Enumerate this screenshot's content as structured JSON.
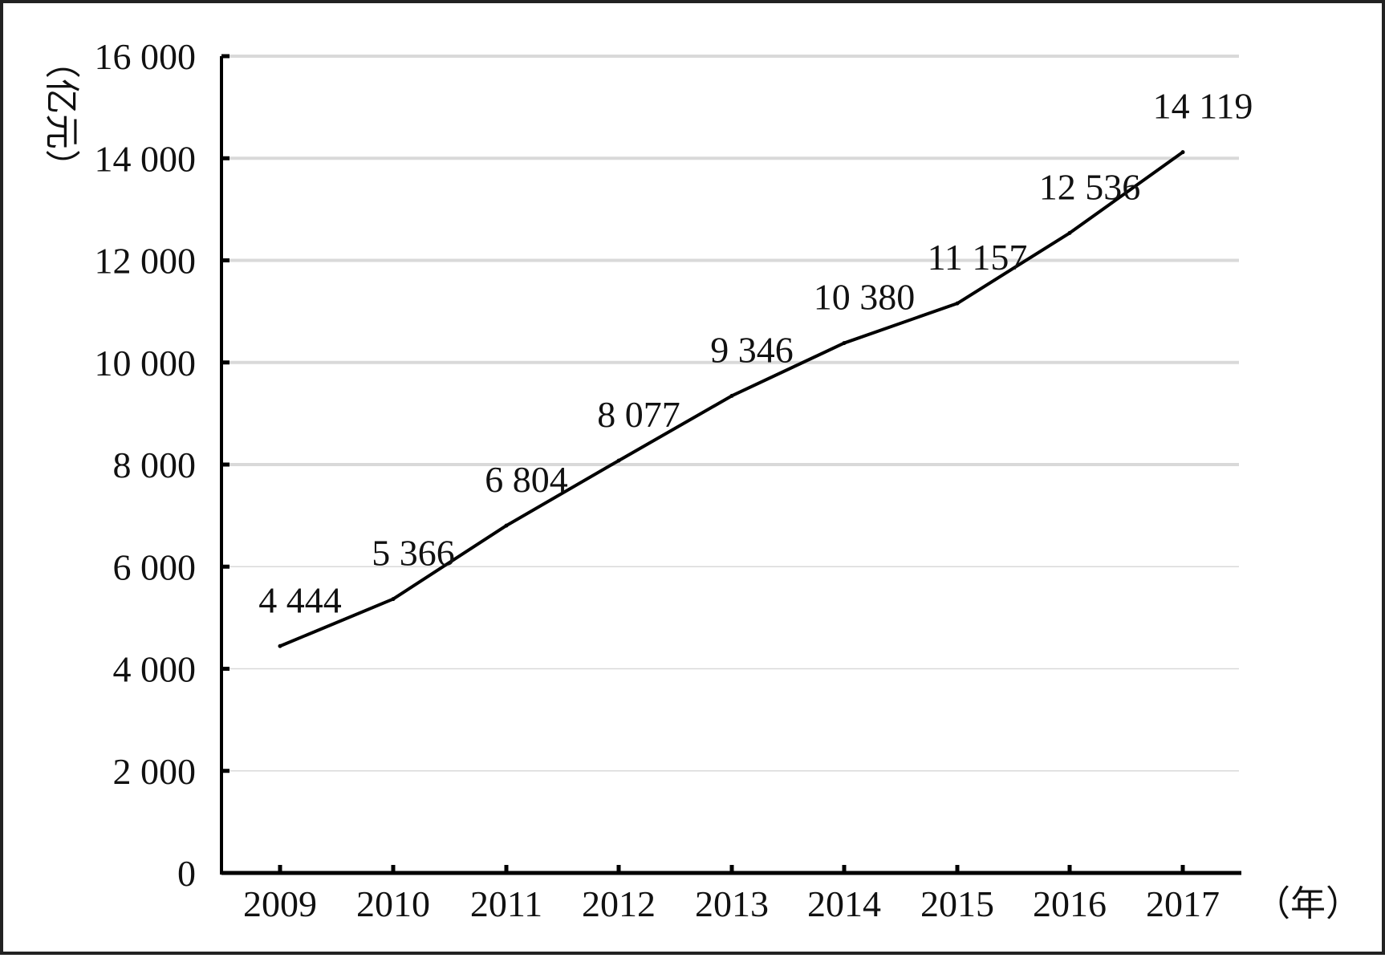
{
  "chart_data": {
    "type": "line",
    "x": [
      "2009",
      "2010",
      "2011",
      "2012",
      "2013",
      "2014",
      "2015",
      "2016",
      "2017"
    ],
    "series": [
      {
        "values": [
          4444,
          5366,
          6804,
          8077,
          9346,
          10380,
          11157,
          12536,
          14119
        ]
      }
    ],
    "data_labels": [
      "4 444",
      "5 366",
      "6 804",
      "8 077",
      "9 346",
      "10 380",
      "11 157",
      "12 536",
      "14 119"
    ],
    "y_ticks": [
      {
        "value": 0,
        "label": "0"
      },
      {
        "value": 2000,
        "label": "2 000"
      },
      {
        "value": 4000,
        "label": "4 000"
      },
      {
        "value": 6000,
        "label": "6 000"
      },
      {
        "value": 8000,
        "label": "8 000"
      },
      {
        "value": 10000,
        "label": "10 000"
      },
      {
        "value": 12000,
        "label": "12 000"
      },
      {
        "value": 14000,
        "label": "14 000"
      },
      {
        "value": 16000,
        "label": "16 000"
      }
    ],
    "ylim": [
      0,
      16000
    ],
    "ylabel": "（亿元）",
    "xlabel": "（年）",
    "grid": true,
    "colors": {
      "line": "#000000",
      "grid": "#d9d9d9",
      "axis": "#000000"
    }
  }
}
